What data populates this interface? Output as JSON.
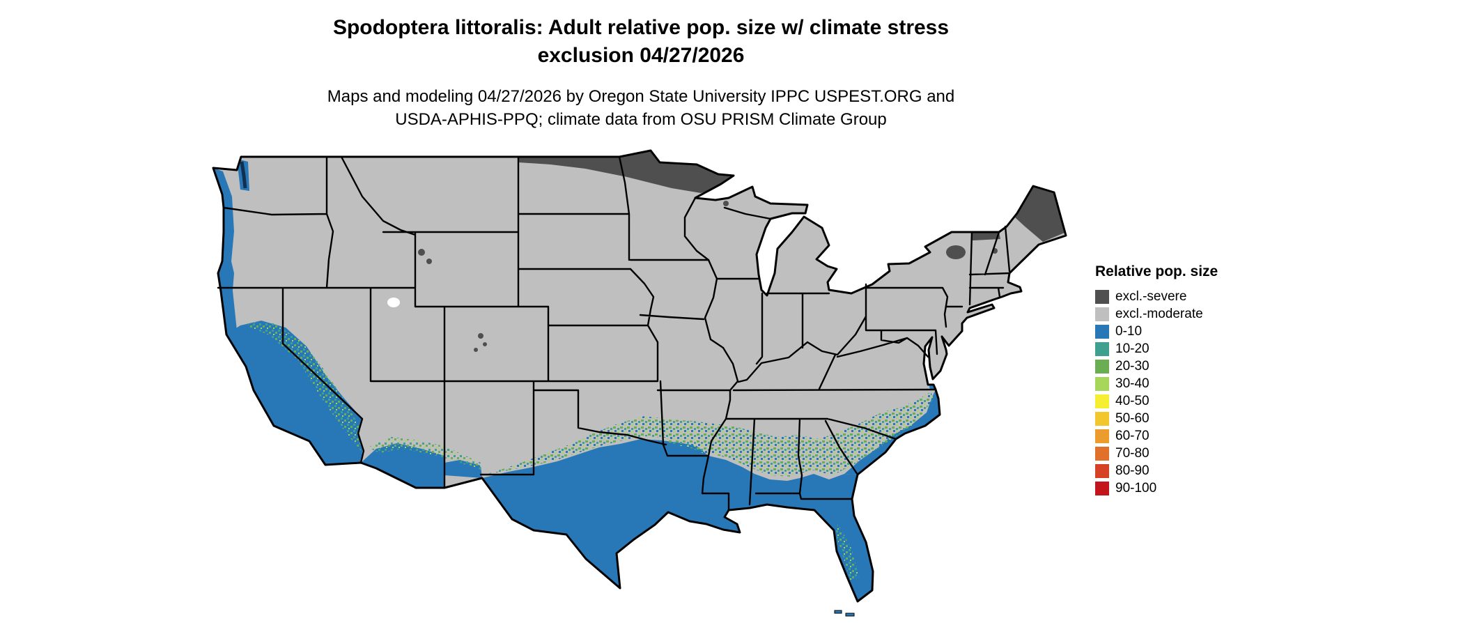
{
  "title": {
    "line1": "Spodoptera littoralis: Adult relative pop. size w/ climate stress",
    "line2": "exclusion 04/27/2026"
  },
  "subtitle": {
    "line1": "Maps and modeling 04/27/2026 by Oregon State University IPPC USPEST.ORG and",
    "line2": "USDA-APHIS-PPQ; climate data from OSU PRISM Climate Group"
  },
  "legend": {
    "title": "Relative pop. size",
    "items": [
      {
        "label": "excl.-severe",
        "color": "#4f4f4f"
      },
      {
        "label": "excl.-moderate",
        "color": "#bfbfbf"
      },
      {
        "label": "0-10",
        "color": "#2878b8"
      },
      {
        "label": "10-20",
        "color": "#3ea08f"
      },
      {
        "label": "20-30",
        "color": "#6bad53"
      },
      {
        "label": "30-40",
        "color": "#a6d75a"
      },
      {
        "label": "40-50",
        "color": "#f5ee31"
      },
      {
        "label": "50-60",
        "color": "#f2c72e"
      },
      {
        "label": "60-70",
        "color": "#ec9b2d"
      },
      {
        "label": "70-80",
        "color": "#e0702a"
      },
      {
        "label": "80-90",
        "color": "#d54226"
      },
      {
        "label": "90-100",
        "color": "#c3151c"
      }
    ]
  },
  "palette": {
    "land": "#bfbfbf",
    "severe": "#4f4f4f",
    "b0": "#2878b8",
    "b10": "#3ea08f",
    "b20": "#6bad53",
    "b30": "#a6d75a",
    "water": "#12304d",
    "border": "#000000",
    "background": "#ffffff"
  }
}
